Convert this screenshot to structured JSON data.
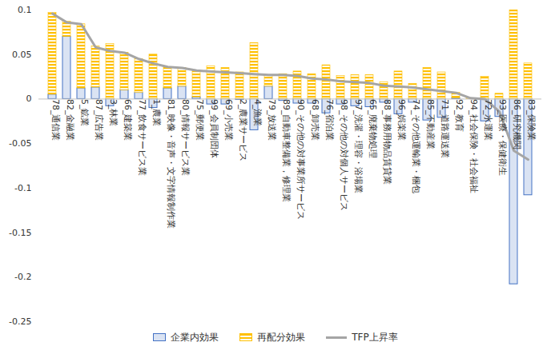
{
  "chart_data": {
    "type": "bar",
    "stacked": true,
    "categories": [
      "78_通信業",
      "82_金融業",
      "5_鉱業",
      "87_広告業",
      "3_林業",
      "66_建築業",
      "77_飲食サービス業",
      "1_農業",
      "81_映像・音声・文字情報制作業",
      "80_情報サービス業",
      "75_郵便業",
      "99_会員制団体",
      "69_小売業",
      "2_農業サービス",
      "4_漁業",
      "79_放送業",
      "89_自動車整備業，修理業",
      "90_その他の対事業所サービス",
      "68_卸売業",
      "76_宿泊業",
      "98_その他の対個人サービス",
      "97_洗濯・理容・浴場業",
      "65_廃棄物処理",
      "88_事務用物品賃貸業",
      "96_娯楽業",
      "74_その他運輸業・梱包",
      "85_不動産業",
      "71_道路運送業",
      "92_教育",
      "94_社会保険・社会福祉",
      "72_水運業",
      "93_医療・保健衛生",
      "86_研究機関",
      "83_保険業"
    ],
    "series": [
      {
        "name": "企業内効果",
        "color": "#dae3f3",
        "values": [
          0.005,
          0.07,
          0.012,
          0.013,
          -0.008,
          0.01,
          0.007,
          -0.01,
          0.012,
          0.014,
          0.002,
          -0.006,
          -0.006,
          -0.001,
          -0.035,
          0.014,
          -0.002,
          -0.005,
          -0.005,
          -0.016,
          -0.006,
          -0.008,
          -0.009,
          -0.004,
          -0.017,
          -0.004,
          -0.024,
          -0.021,
          0.001,
          0.0,
          -0.025,
          -0.02,
          -0.208,
          -0.108
        ]
      },
      {
        "name": "再配分効果",
        "color": "#ffc000",
        "values": [
          0.092,
          0.017,
          0.072,
          0.046,
          0.062,
          0.042,
          0.038,
          0.05,
          0.024,
          0.021,
          0.03,
          0.037,
          0.035,
          0.03,
          0.063,
          0.013,
          0.028,
          0.031,
          0.028,
          0.038,
          0.026,
          0.027,
          0.027,
          0.019,
          0.031,
          0.017,
          0.035,
          0.03,
          0.006,
          0.001,
          0.025,
          0.006,
          0.1,
          0.04
        ]
      },
      {
        "name": "TFP上昇率",
        "type": "line",
        "color": "#a5a5a5",
        "values": [
          0.096,
          0.086,
          0.084,
          0.058,
          0.054,
          0.052,
          0.045,
          0.04,
          0.036,
          0.035,
          0.032,
          0.031,
          0.03,
          0.029,
          0.028,
          0.027,
          0.027,
          0.026,
          0.023,
          0.022,
          0.02,
          0.019,
          0.018,
          0.015,
          0.014,
          0.013,
          0.011,
          0.009,
          0.007,
          0.001,
          0.0,
          -0.014,
          -0.058,
          -0.068
        ]
      }
    ],
    "ylim": [
      -0.25,
      0.1
    ],
    "yticks": [
      -0.25,
      -0.2,
      -0.15,
      -0.1,
      -0.05,
      0,
      0.05,
      0.1
    ],
    "grid": false,
    "legend": "bottom"
  }
}
